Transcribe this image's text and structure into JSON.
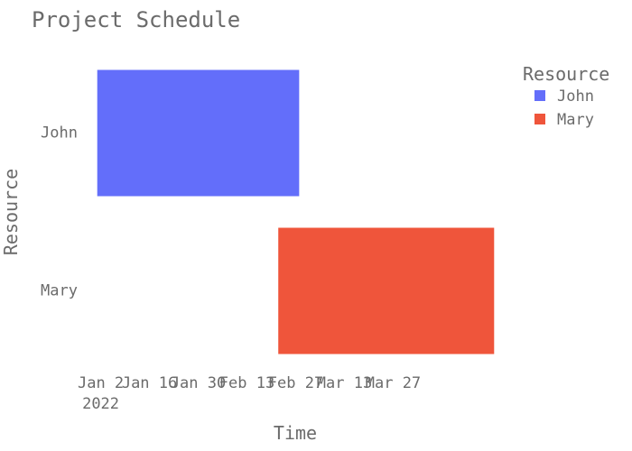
{
  "chart_data": {
    "type": "bar",
    "orientation": "horizontal",
    "title": "Project Schedule",
    "xlabel": "Time",
    "ylabel": "Resource",
    "legend": {
      "title": "Resource",
      "position": "top-right"
    },
    "categories": [
      "John",
      "Mary"
    ],
    "series": [
      {
        "name": "John",
        "color": "#636efa",
        "start": "2022-01-01",
        "end": "2022-02-28"
      },
      {
        "name": "Mary",
        "color": "#ef553b",
        "start": "2022-02-22",
        "end": "2022-04-25"
      }
    ],
    "x_ticks": [
      {
        "date": "2022-01-02",
        "label": "Jan 2",
        "sublabel": "2022"
      },
      {
        "date": "2022-01-16",
        "label": "Jan 16"
      },
      {
        "date": "2022-01-30",
        "label": "Jan 30"
      },
      {
        "date": "2022-02-13",
        "label": "Feb 13"
      },
      {
        "date": "2022-02-27",
        "label": "Feb 27"
      },
      {
        "date": "2022-03-13",
        "label": "Mar 13"
      },
      {
        "date": "2022-03-27",
        "label": "Mar 27"
      }
    ],
    "xlim": [
      "2021-12-30",
      "2022-04-27"
    ],
    "grid": false
  }
}
